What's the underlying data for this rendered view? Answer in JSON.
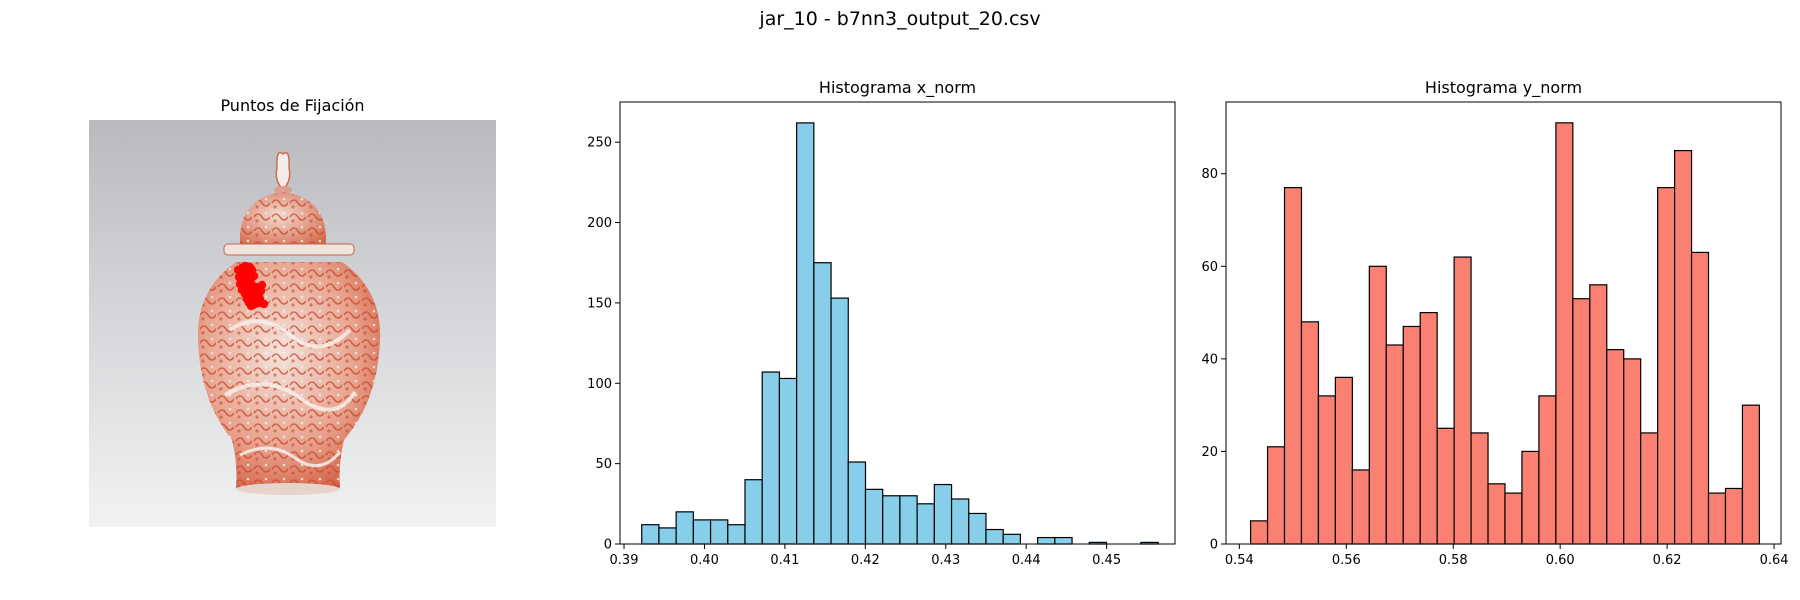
{
  "figure_title": "jar_10 - b7nn3_output_20.csv",
  "image_panel": {
    "title": "Puntos de Fijación"
  },
  "chart_data": [
    {
      "type": "bar",
      "title": "Histograma x_norm",
      "color": "#87CEEB",
      "edge_color": "#000000",
      "xlim": [
        0.3895,
        0.4585
      ],
      "ylim": [
        0,
        275
      ],
      "xticks": [
        0.39,
        0.4,
        0.41,
        0.42,
        0.43,
        0.44,
        0.45
      ],
      "xtick_labels": [
        "0.39",
        "0.40",
        "0.41",
        "0.42",
        "0.43",
        "0.44",
        "0.45"
      ],
      "yticks": [
        0,
        50,
        100,
        150,
        200,
        250
      ],
      "ytick_labels": [
        "0",
        "50",
        "100",
        "150",
        "200",
        "250"
      ],
      "bin_start": 0.3922,
      "bin_width": 0.00214,
      "values": [
        12,
        10,
        20,
        15,
        15,
        12,
        40,
        107,
        103,
        262,
        175,
        153,
        51,
        34,
        30,
        30,
        25,
        37,
        28,
        19,
        9,
        6,
        0,
        4,
        4,
        0,
        1,
        0,
        0,
        1
      ]
    },
    {
      "type": "bar",
      "title": "Histograma y_norm",
      "color": "#FA8072",
      "edge_color": "#000000",
      "xlim": [
        0.5375,
        0.6413
      ],
      "ylim": [
        0,
        95.5
      ],
      "xticks": [
        0.54,
        0.56,
        0.58,
        0.6,
        0.62,
        0.64
      ],
      "xtick_labels": [
        "0.54",
        "0.56",
        "0.58",
        "0.60",
        "0.62",
        "0.64"
      ],
      "yticks": [
        0,
        20,
        40,
        60,
        80
      ],
      "ytick_labels": [
        "0",
        "20",
        "40",
        "60",
        "80"
      ],
      "bin_start": 0.5421,
      "bin_width": 0.003172,
      "values": [
        5,
        21,
        77,
        48,
        32,
        36,
        16,
        60,
        43,
        47,
        50,
        25,
        62,
        24,
        13,
        11,
        20,
        32,
        91,
        53,
        56,
        42,
        40,
        24,
        77,
        85,
        63,
        11,
        12,
        30
      ]
    }
  ]
}
